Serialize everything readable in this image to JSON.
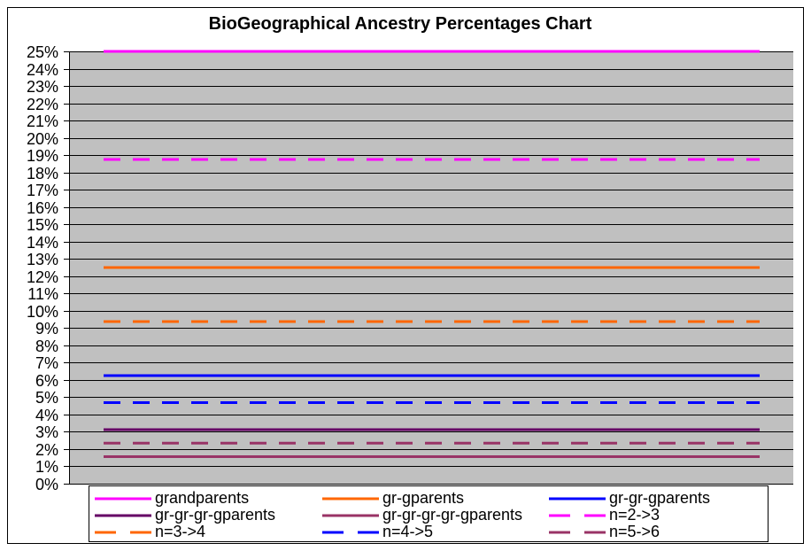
{
  "colors": {
    "chart_background": "#FFFFFF",
    "plot_background": "#C0C0C0",
    "gridline": "#000000",
    "border": "#000000"
  },
  "chart_data": {
    "type": "line",
    "title": "BioGeographical Ancestry Percentages Chart",
    "ylim": [
      0,
      25
    ],
    "yticks": [
      0,
      1,
      2,
      3,
      4,
      5,
      6,
      7,
      8,
      9,
      10,
      11,
      12,
      13,
      14,
      15,
      16,
      17,
      18,
      19,
      20,
      21,
      22,
      23,
      24,
      25
    ],
    "ytick_labels": [
      "0%",
      "1%",
      "2%",
      "3%",
      "4%",
      "5%",
      "6%",
      "7%",
      "8%",
      "9%",
      "10%",
      "11%",
      "12%",
      "13%",
      "14%",
      "15%",
      "16%",
      "17%",
      "18%",
      "19%",
      "20%",
      "21%",
      "22%",
      "23%",
      "24%",
      "25%"
    ],
    "grid": true,
    "legend_position": "bottom",
    "series": [
      {
        "name": "grandparents",
        "value": 25,
        "color": "#FF00FF",
        "line_style": "solid"
      },
      {
        "name": "gr-gparents",
        "value": 12.5,
        "color": "#FF6600",
        "line_style": "solid"
      },
      {
        "name": "gr-gr-gparents",
        "value": 6.25,
        "color": "#0000FF",
        "line_style": "solid"
      },
      {
        "name": "gr-gr-gr-gparents",
        "value": 3.125,
        "color": "#660066",
        "line_style": "solid"
      },
      {
        "name": "gr-gr-gr-gr-gparents",
        "value": 1.5625,
        "color": "#993366",
        "line_style": "solid"
      },
      {
        "name": "n=2->3",
        "value": 18.75,
        "color": "#FF00FF",
        "line_style": "dashed"
      },
      {
        "name": "n=3->4",
        "value": 9.375,
        "color": "#FF6600",
        "line_style": "dashed"
      },
      {
        "name": "n=4->5",
        "value": 4.6875,
        "color": "#0000FF",
        "line_style": "dashed"
      },
      {
        "name": "n=5->6",
        "value": 2.34375,
        "color": "#993366",
        "line_style": "dashed"
      }
    ]
  }
}
